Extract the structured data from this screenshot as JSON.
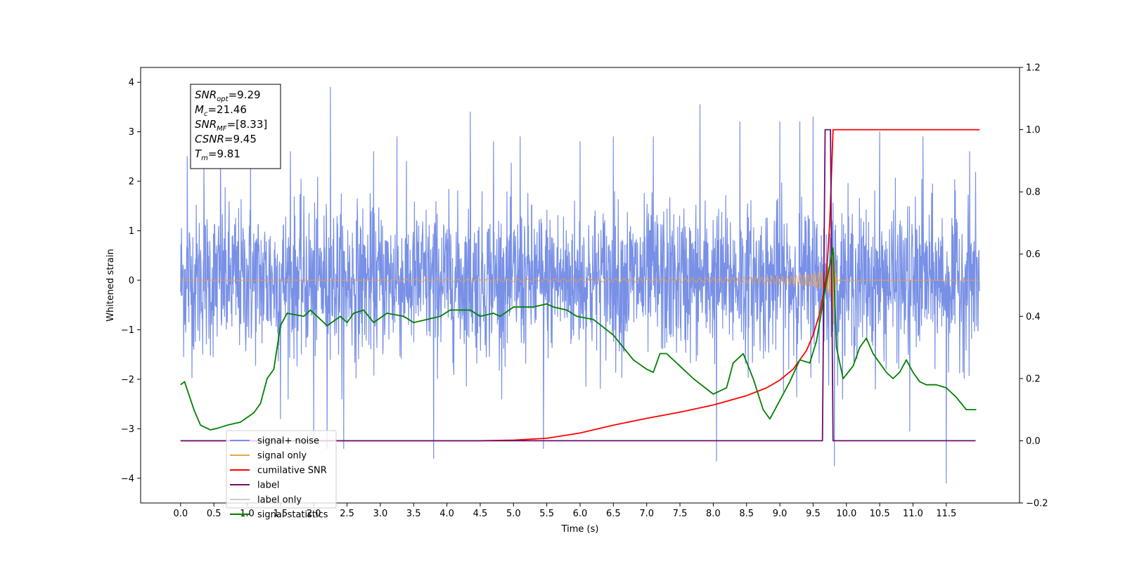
{
  "chart_data": {
    "type": "line",
    "xlabel": "Time (s)",
    "ylabel": "Whitened strain",
    "xlim": [
      -0.6,
      12.6
    ],
    "ylim": [
      -4.5,
      4.3
    ],
    "y2lim": [
      -0.2,
      1.2
    ],
    "grid": false,
    "legend_position": "lower-left",
    "x_ticks": [
      "0.0",
      "0.5",
      "1.0",
      "1.5",
      "2.0",
      "2.5",
      "3.0",
      "3.5",
      "4.0",
      "4.5",
      "5.0",
      "5.5",
      "6.0",
      "6.5",
      "7.0",
      "7.5",
      "8.0",
      "8.5",
      "9.0",
      "9.5",
      "10.0",
      "10.5",
      "11.0",
      "11.5"
    ],
    "y_ticks": [
      "4",
      "3",
      "2",
      "1",
      "0",
      "−1",
      "−2",
      "−3",
      "−4"
    ],
    "y2_ticks": [
      "1.2",
      "1.0",
      "0.8",
      "0.6",
      "0.4",
      "0.2",
      "0.0",
      "−0.2"
    ],
    "annotation": [
      {
        "sym": "SNR",
        "sub": "opt",
        "value": "=9.29"
      },
      {
        "sym": "M",
        "sub": "c",
        "value": "=21.46"
      },
      {
        "sym": "SNR",
        "sub": "MF",
        "value": "=[8.33]"
      },
      {
        "sym": "CSNR",
        "sub": "",
        "value": "=9.45"
      },
      {
        "sym": "T",
        "sub": "m",
        "value": "=9.81"
      }
    ],
    "series": [
      {
        "name": "signal+ noise",
        "color": "#7890e6",
        "axis": "left",
        "x_range": [
          0.0,
          12.0
        ],
        "envelope": [
          1.3,
          -1.3
        ],
        "spikes": [
          [
            0.1,
            2.5
          ],
          [
            0.35,
            2.4
          ],
          [
            0.6,
            2.6
          ],
          [
            1.05,
            2.5
          ],
          [
            1.5,
            -2.8
          ],
          [
            1.65,
            2.6
          ],
          [
            2.0,
            -3.2
          ],
          [
            2.2,
            -3.4
          ],
          [
            2.25,
            3.9
          ],
          [
            2.45,
            -3.4
          ],
          [
            2.9,
            2.6
          ],
          [
            3.25,
            2.9
          ],
          [
            3.8,
            -3.6
          ],
          [
            4.35,
            3.4
          ],
          [
            4.7,
            2.8
          ],
          [
            5.1,
            2.9
          ],
          [
            5.45,
            -3.4
          ],
          [
            6.0,
            2.8
          ],
          [
            6.5,
            2.9
          ],
          [
            7.1,
            2.9
          ],
          [
            7.8,
            3.55
          ],
          [
            8.05,
            -3.65
          ],
          [
            8.4,
            3.2
          ],
          [
            9.0,
            3.2
          ],
          [
            9.3,
            3.2
          ],
          [
            9.5,
            3.3
          ],
          [
            9.82,
            -3.75
          ],
          [
            10.5,
            3.0
          ],
          [
            10.95,
            -3.05
          ],
          [
            11.5,
            -4.1
          ],
          [
            11.85,
            2.6
          ],
          [
            11.15,
            2.9
          ]
        ]
      },
      {
        "name": "signal only",
        "color": "#e8a050",
        "axis": "left",
        "chirp": {
          "t_merge": 9.81,
          "t_start": 8.0,
          "peak_amplitude": 0.9
        }
      },
      {
        "name": "cumilative SNR",
        "color": "#ff0000",
        "axis": "right",
        "points": [
          [
            0.0,
            0.0
          ],
          [
            4.5,
            0.0
          ],
          [
            5.0,
            0.002
          ],
          [
            5.5,
            0.008
          ],
          [
            6.0,
            0.025
          ],
          [
            6.5,
            0.05
          ],
          [
            7.0,
            0.072
          ],
          [
            7.5,
            0.092
          ],
          [
            8.0,
            0.115
          ],
          [
            8.5,
            0.145
          ],
          [
            8.8,
            0.17
          ],
          [
            9.0,
            0.195
          ],
          [
            9.2,
            0.23
          ],
          [
            9.4,
            0.29
          ],
          [
            9.5,
            0.34
          ],
          [
            9.6,
            0.41
          ],
          [
            9.7,
            0.53
          ],
          [
            9.75,
            0.7
          ],
          [
            9.8,
            1.0
          ],
          [
            12.0,
            1.0
          ]
        ]
      },
      {
        "name": "label",
        "color": "#6a0f6e",
        "axis": "right",
        "points": [
          [
            0.0,
            0.0
          ],
          [
            9.64,
            0.0
          ],
          [
            9.68,
            1.0
          ],
          [
            9.76,
            1.0
          ],
          [
            9.8,
            0.0
          ],
          [
            11.94,
            0.0
          ]
        ]
      },
      {
        "name": "label only",
        "color": "#cccccc",
        "axis": "right",
        "hidden_behind_legend": true,
        "points": []
      },
      {
        "name": "signal statistics",
        "color": "#008000",
        "axis": "right",
        "points": [
          [
            0.0,
            0.18
          ],
          [
            0.06,
            0.19
          ],
          [
            0.2,
            0.1
          ],
          [
            0.3,
            0.05
          ],
          [
            0.45,
            0.035
          ],
          [
            0.55,
            0.04
          ],
          [
            0.7,
            0.05
          ],
          [
            0.9,
            0.06
          ],
          [
            1.1,
            0.09
          ],
          [
            1.2,
            0.12
          ],
          [
            1.3,
            0.2
          ],
          [
            1.4,
            0.23
          ],
          [
            1.5,
            0.37
          ],
          [
            1.6,
            0.41
          ],
          [
            1.85,
            0.4
          ],
          [
            1.95,
            0.42
          ],
          [
            2.1,
            0.39
          ],
          [
            2.2,
            0.37
          ],
          [
            2.4,
            0.4
          ],
          [
            2.5,
            0.38
          ],
          [
            2.6,
            0.41
          ],
          [
            2.75,
            0.42
          ],
          [
            2.9,
            0.38
          ],
          [
            3.1,
            0.41
          ],
          [
            3.35,
            0.4
          ],
          [
            3.5,
            0.38
          ],
          [
            3.7,
            0.39
          ],
          [
            3.9,
            0.4
          ],
          [
            4.05,
            0.42
          ],
          [
            4.2,
            0.42
          ],
          [
            4.35,
            0.42
          ],
          [
            4.5,
            0.4
          ],
          [
            4.7,
            0.41
          ],
          [
            4.8,
            0.4
          ],
          [
            5.0,
            0.43
          ],
          [
            5.3,
            0.43
          ],
          [
            5.5,
            0.44
          ],
          [
            5.6,
            0.43
          ],
          [
            5.8,
            0.42
          ],
          [
            5.95,
            0.4
          ],
          [
            6.2,
            0.39
          ],
          [
            6.5,
            0.34
          ],
          [
            6.8,
            0.26
          ],
          [
            7.0,
            0.23
          ],
          [
            7.1,
            0.22
          ],
          [
            7.2,
            0.28
          ],
          [
            7.3,
            0.28
          ],
          [
            7.45,
            0.25
          ],
          [
            7.7,
            0.2
          ],
          [
            8.0,
            0.15
          ],
          [
            8.2,
            0.17
          ],
          [
            8.3,
            0.25
          ],
          [
            8.45,
            0.28
          ],
          [
            8.6,
            0.2
          ],
          [
            8.75,
            0.1
          ],
          [
            8.85,
            0.07
          ],
          [
            9.0,
            0.13
          ],
          [
            9.15,
            0.19
          ],
          [
            9.3,
            0.26
          ],
          [
            9.45,
            0.25
          ],
          [
            9.55,
            0.32
          ],
          [
            9.7,
            0.51
          ],
          [
            9.8,
            0.62
          ],
          [
            9.85,
            0.3
          ],
          [
            9.95,
            0.2
          ],
          [
            10.1,
            0.24
          ],
          [
            10.2,
            0.3
          ],
          [
            10.3,
            0.33
          ],
          [
            10.4,
            0.28
          ],
          [
            10.5,
            0.25
          ],
          [
            10.6,
            0.22
          ],
          [
            10.7,
            0.2
          ],
          [
            10.8,
            0.22
          ],
          [
            10.9,
            0.26
          ],
          [
            11.0,
            0.22
          ],
          [
            11.1,
            0.19
          ],
          [
            11.2,
            0.18
          ],
          [
            11.35,
            0.18
          ],
          [
            11.5,
            0.17
          ],
          [
            11.65,
            0.14
          ],
          [
            11.8,
            0.1
          ],
          [
            11.95,
            0.1
          ]
        ]
      }
    ]
  }
}
